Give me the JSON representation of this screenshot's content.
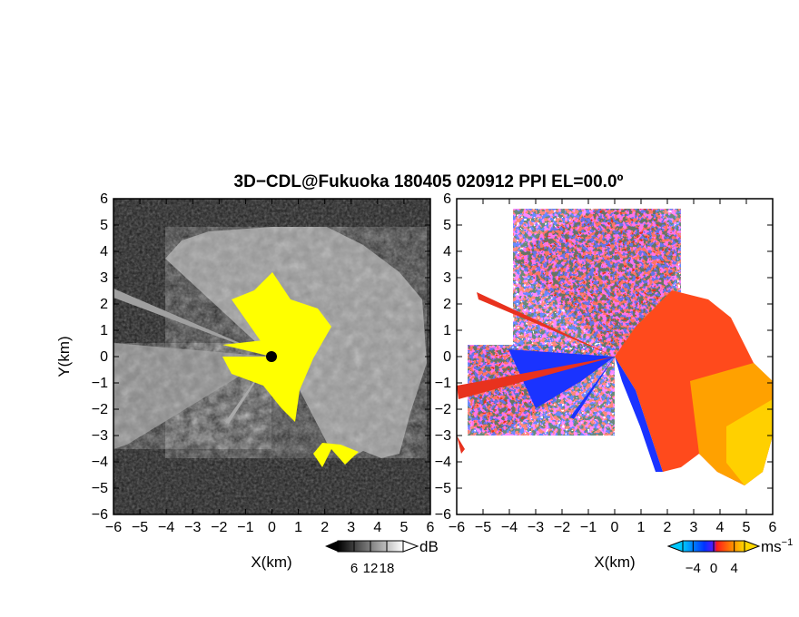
{
  "chart_data": [
    {
      "type": "heatmap",
      "panel": "reflectivity",
      "xlabel": "X(km)",
      "ylabel": "Y(km)",
      "xlim": [
        -6,
        6
      ],
      "ylim": [
        -6,
        6
      ],
      "x_ticks": [
        "−6",
        "−5",
        "−4",
        "−3",
        "−2",
        "−1",
        "0",
        "1",
        "2",
        "3",
        "4",
        "5",
        "6"
      ],
      "y_ticks": [
        "−6",
        "−5",
        "−4",
        "−3",
        "−2",
        "−1",
        "0",
        "1",
        "2",
        "3",
        "4",
        "5",
        "6"
      ],
      "colorbar": {
        "unit": "dB",
        "ticks": [
          "6",
          "12",
          "18"
        ],
        "range": [
          0,
          24
        ],
        "colormap": "gray"
      },
      "highlight_color": "#ffff00",
      "background_color": "#202020"
    },
    {
      "type": "heatmap",
      "panel": "doppler_velocity",
      "xlabel": "X(km)",
      "xlim": [
        -6,
        6
      ],
      "ylim": [
        -6,
        6
      ],
      "x_ticks": [
        "−6",
        "−5",
        "−4",
        "−3",
        "−2",
        "−1",
        "0",
        "1",
        "2",
        "3",
        "4",
        "5",
        "6"
      ],
      "y_ticks": [
        "−6",
        "−5",
        "−4",
        "−3",
        "−2",
        "−1",
        "0",
        "1",
        "2",
        "3",
        "4",
        "5",
        "6"
      ],
      "colorbar": {
        "unit": "ms",
        "unit_exponent": "−1",
        "ticks": [
          "−4",
          "0",
          "4"
        ],
        "range": [
          -6,
          6
        ],
        "colormap": "blue-red-yellow"
      },
      "colors": {
        "negative": "#1a33ff",
        "positive": "#ff3322",
        "far_positive": "#ffb000"
      }
    }
  ],
  "figure": {
    "title": "3D−CDL@Fukuoka 180405 020912 PPI EL=00.0º"
  }
}
